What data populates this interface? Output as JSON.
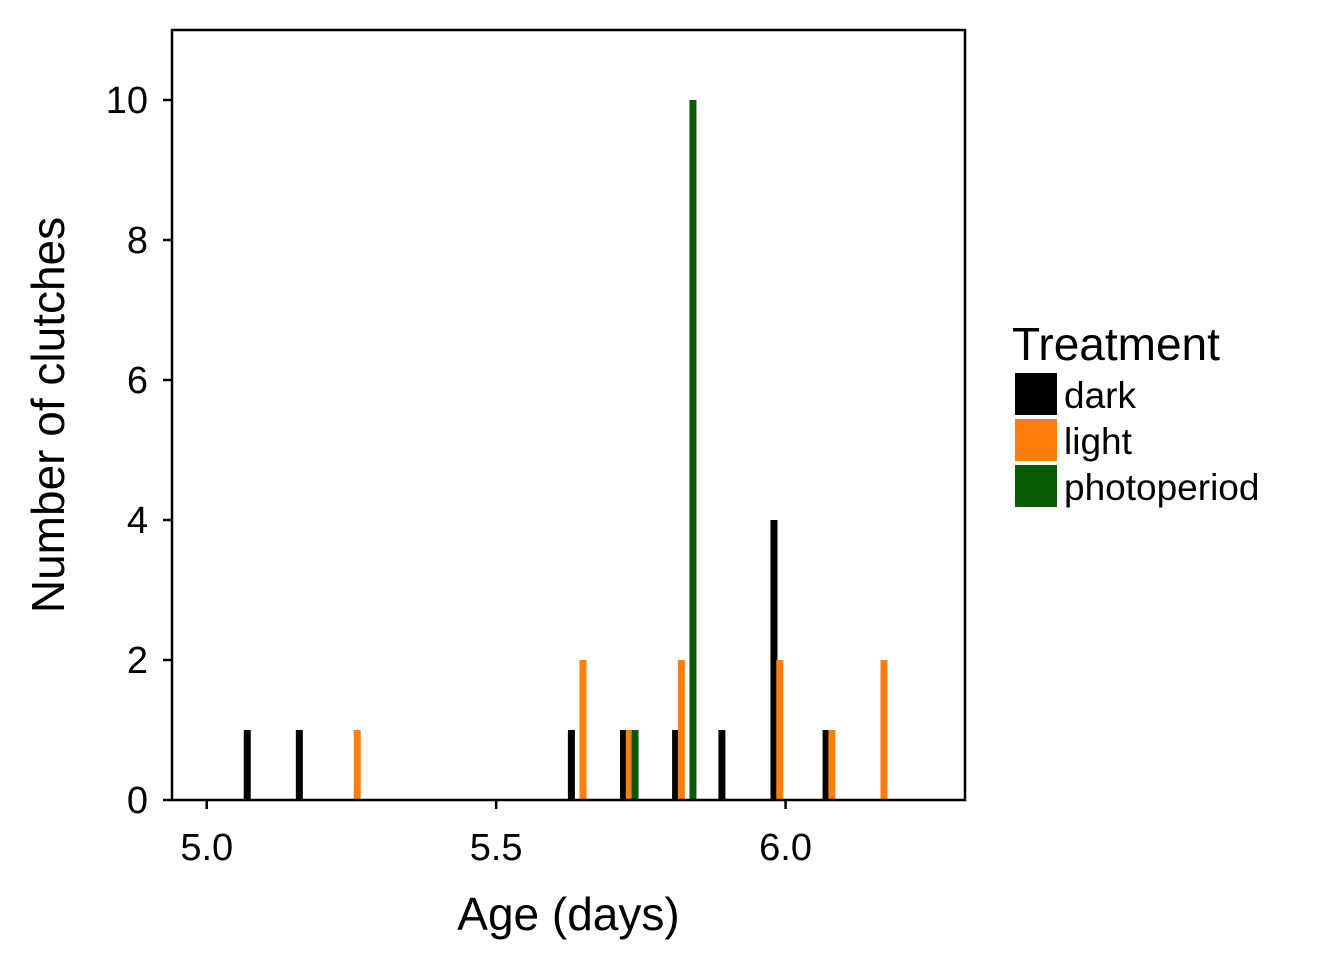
{
  "chart_data": {
    "type": "bar",
    "title": "",
    "xlabel": "Age (days)",
    "ylabel": "Number of clutches",
    "xlim": [
      4.94,
      6.31
    ],
    "ylim": [
      0,
      11
    ],
    "x_ticks": [
      "5.0",
      "5.5",
      "6.0"
    ],
    "x_tick_values": [
      5.0,
      5.5,
      6.0
    ],
    "y_ticks": [
      "0",
      "2",
      "4",
      "6",
      "8",
      "10"
    ],
    "y_tick_values": [
      0,
      2,
      4,
      6,
      8,
      10
    ],
    "grid": false,
    "legend": {
      "title": "Treatment",
      "placement": "right"
    },
    "series": [
      {
        "name": "dark",
        "color": "#000000",
        "points": [
          {
            "x": 5.07,
            "y": 1
          },
          {
            "x": 5.16,
            "y": 1
          },
          {
            "x": 5.63,
            "y": 1
          },
          {
            "x": 5.72,
            "y": 1
          },
          {
            "x": 5.81,
            "y": 1
          },
          {
            "x": 5.89,
            "y": 1
          },
          {
            "x": 5.98,
            "y": 4
          },
          {
            "x": 6.07,
            "y": 1
          }
        ]
      },
      {
        "name": "light",
        "color": "#FF7F0E",
        "points": [
          {
            "x": 5.26,
            "y": 1
          },
          {
            "x": 5.65,
            "y": 2
          },
          {
            "x": 5.73,
            "y": 1
          },
          {
            "x": 5.82,
            "y": 2
          },
          {
            "x": 5.99,
            "y": 2
          },
          {
            "x": 6.08,
            "y": 1
          },
          {
            "x": 6.17,
            "y": 2
          }
        ]
      },
      {
        "name": "photoperiod",
        "color": "#0B5A05",
        "points": [
          {
            "x": 5.74,
            "y": 1
          },
          {
            "x": 5.84,
            "y": 10
          }
        ]
      }
    ]
  }
}
